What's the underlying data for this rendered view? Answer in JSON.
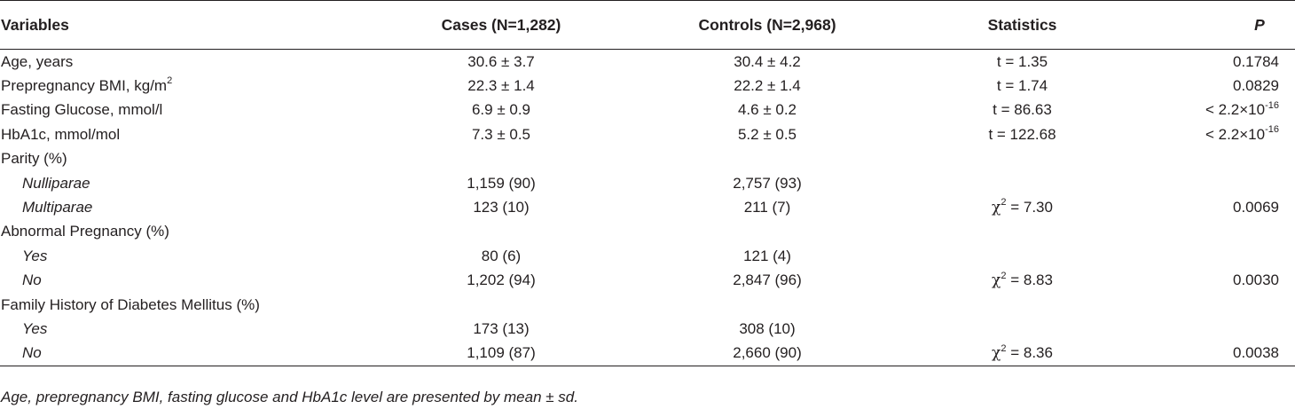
{
  "table": {
    "headers": {
      "variables": "Variables",
      "cases": "Cases (N=1,282)",
      "controls": "Controls (N=2,968)",
      "statistics": "Statistics",
      "p": "P"
    },
    "rows": [
      {
        "variable": "Age, years",
        "cases": "30.6 ± 3.7",
        "controls": "30.4 ± 4.2",
        "stat": "t = 1.35",
        "p": "0.1784"
      },
      {
        "variable": "Prepregnancy BMI, kg/m",
        "variable_sup": "2",
        "cases": "22.3 ± 1.4",
        "controls": "22.2 ± 1.4",
        "stat": "t = 1.74",
        "p": "0.0829"
      },
      {
        "variable": "Fasting Glucose, mmol/l",
        "cases": "6.9 ± 0.9",
        "controls": "4.6 ± 0.2",
        "stat": "t = 86.63",
        "p": "< 2.2×10",
        "p_sup": "-16"
      },
      {
        "variable": "HbA1c, mmol/mol",
        "cases": "7.3 ± 0.5",
        "controls": "5.2 ± 0.5",
        "stat": "t = 122.68",
        "p": "< 2.2×10",
        "p_sup": "-16"
      },
      {
        "variable": "Parity (%)"
      },
      {
        "variable": "Nulliparae",
        "cases": "1,159 (90)",
        "controls": "2,757 (93)"
      },
      {
        "variable": "Multiparae",
        "cases": "123 (10)",
        "controls": "211 (7)",
        "stat_symbol": "χ",
        "stat_sup": "2",
        "stat": " = 7.30",
        "p": "0.0069"
      },
      {
        "variable": "Abnormal Pregnancy (%)"
      },
      {
        "variable": "Yes",
        "cases": "80 (6)",
        "controls": "121 (4)"
      },
      {
        "variable": "No",
        "cases": "1,202 (94)",
        "controls": "2,847 (96)",
        "stat_symbol": "χ",
        "stat_sup": "2",
        "stat": " = 8.83",
        "p": "0.0030"
      },
      {
        "variable": "Family History of Diabetes Mellitus (%)"
      },
      {
        "variable": "Yes",
        "cases": "173 (13)",
        "controls": "308 (10)"
      },
      {
        "variable": "No",
        "cases": "1,109 (87)",
        "controls": "2,660 (90)",
        "stat_symbol": "χ",
        "stat_sup": "2",
        "stat": " = 8.36",
        "p": "0.0038"
      }
    ]
  },
  "footnote": "Age, prepregnancy BMI, fasting glucose and HbA1c level are presented by mean ± sd."
}
